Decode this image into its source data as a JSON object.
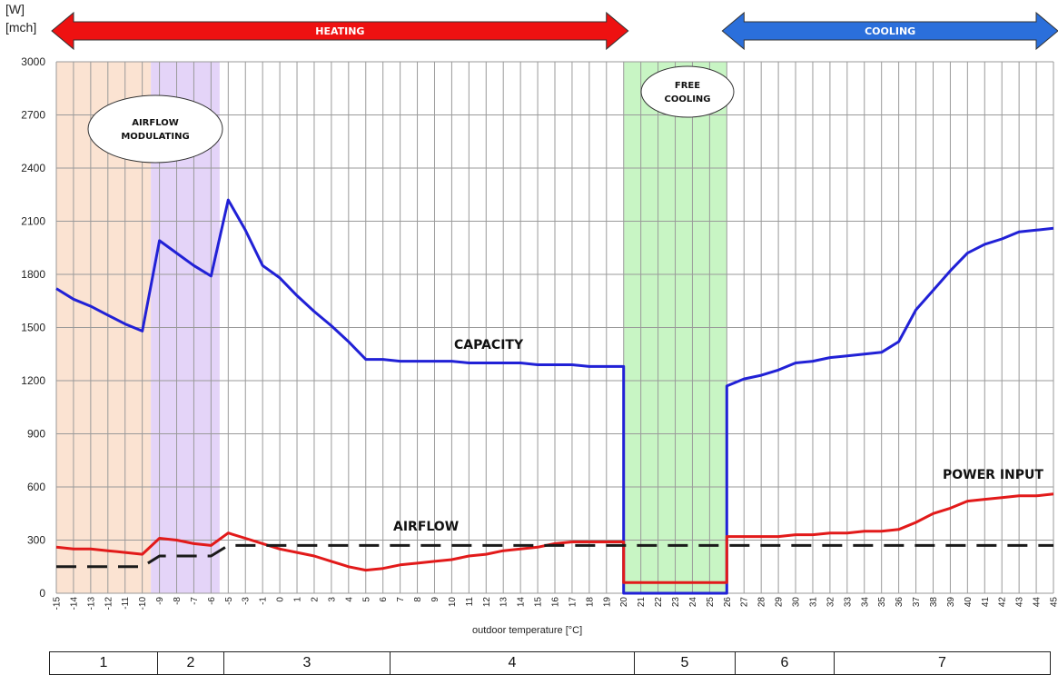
{
  "chart_data": {
    "type": "line",
    "y_unit_top": "[W]",
    "y_unit_bottom": "[mch]",
    "xlabel": "outdoor temperature [°C]",
    "ylim": [
      0,
      3000
    ],
    "yticks": [
      0,
      300,
      600,
      900,
      1200,
      1500,
      1800,
      2100,
      2400,
      2700,
      3000
    ],
    "x": [
      -15,
      -14,
      -13,
      -12,
      -11,
      -10,
      -9,
      -8,
      -7,
      -6,
      -5,
      -3,
      -1,
      0,
      1,
      2,
      3,
      4,
      5,
      6,
      7,
      8,
      9,
      10,
      11,
      12,
      13,
      14,
      15,
      16,
      17,
      18,
      19,
      20,
      21,
      22,
      23,
      24,
      25,
      26,
      27,
      28,
      29,
      30,
      31,
      32,
      33,
      34,
      35,
      36,
      37,
      38,
      39,
      40,
      41,
      42,
      43,
      44,
      45
    ],
    "grid": true,
    "series": [
      {
        "name": "CAPACITY",
        "color": "#2121d6",
        "points": [
          [
            -15,
            1720
          ],
          [
            -14,
            1660
          ],
          [
            -13,
            1620
          ],
          [
            -12,
            1570
          ],
          [
            -11,
            1520
          ],
          [
            -10,
            1480
          ],
          [
            -9,
            1990
          ],
          [
            -8,
            1920
          ],
          [
            -7,
            1850
          ],
          [
            -6,
            1790
          ],
          [
            -5,
            2220
          ],
          [
            -3,
            2050
          ],
          [
            -1,
            1850
          ],
          [
            0,
            1780
          ],
          [
            1,
            1680
          ],
          [
            2,
            1590
          ],
          [
            3,
            1510
          ],
          [
            4,
            1420
          ],
          [
            5,
            1320
          ],
          [
            6,
            1320
          ],
          [
            7,
            1310
          ],
          [
            8,
            1310
          ],
          [
            9,
            1310
          ],
          [
            10,
            1310
          ],
          [
            11,
            1300
          ],
          [
            12,
            1300
          ],
          [
            13,
            1300
          ],
          [
            14,
            1300
          ],
          [
            15,
            1290
          ],
          [
            16,
            1290
          ],
          [
            17,
            1290
          ],
          [
            18,
            1280
          ],
          [
            19,
            1280
          ],
          [
            20,
            1280
          ],
          [
            20,
            0
          ],
          [
            26,
            0
          ],
          [
            26,
            1170
          ],
          [
            27,
            1210
          ],
          [
            28,
            1230
          ],
          [
            29,
            1260
          ],
          [
            30,
            1300
          ],
          [
            31,
            1310
          ],
          [
            32,
            1330
          ],
          [
            33,
            1340
          ],
          [
            34,
            1350
          ],
          [
            35,
            1360
          ],
          [
            36,
            1420
          ],
          [
            37,
            1600
          ],
          [
            38,
            1710
          ],
          [
            39,
            1820
          ],
          [
            40,
            1920
          ],
          [
            41,
            1970
          ],
          [
            42,
            2000
          ],
          [
            43,
            2040
          ],
          [
            44,
            2050
          ],
          [
            45,
            2060
          ]
        ]
      },
      {
        "name": "POWER INPUT",
        "color": "#e21a1a",
        "points": [
          [
            -15,
            260
          ],
          [
            -14,
            250
          ],
          [
            -13,
            250
          ],
          [
            -12,
            240
          ],
          [
            -11,
            230
          ],
          [
            -10,
            220
          ],
          [
            -9,
            310
          ],
          [
            -8,
            300
          ],
          [
            -7,
            280
          ],
          [
            -6,
            270
          ],
          [
            -5,
            340
          ],
          [
            -3,
            310
          ],
          [
            -1,
            280
          ],
          [
            0,
            250
          ],
          [
            1,
            230
          ],
          [
            2,
            210
          ],
          [
            3,
            180
          ],
          [
            4,
            150
          ],
          [
            5,
            130
          ],
          [
            6,
            140
          ],
          [
            7,
            160
          ],
          [
            8,
            170
          ],
          [
            9,
            180
          ],
          [
            10,
            190
          ],
          [
            11,
            210
          ],
          [
            12,
            220
          ],
          [
            13,
            240
          ],
          [
            14,
            250
          ],
          [
            15,
            260
          ],
          [
            16,
            280
          ],
          [
            17,
            290
          ],
          [
            18,
            290
          ],
          [
            19,
            290
          ],
          [
            20,
            290
          ],
          [
            20,
            60
          ],
          [
            26,
            60
          ],
          [
            26,
            320
          ],
          [
            27,
            320
          ],
          [
            28,
            320
          ],
          [
            29,
            320
          ],
          [
            30,
            330
          ],
          [
            31,
            330
          ],
          [
            32,
            340
          ],
          [
            33,
            340
          ],
          [
            34,
            350
          ],
          [
            35,
            350
          ],
          [
            36,
            360
          ],
          [
            37,
            400
          ],
          [
            38,
            450
          ],
          [
            39,
            480
          ],
          [
            40,
            520
          ],
          [
            41,
            530
          ],
          [
            42,
            540
          ],
          [
            43,
            550
          ],
          [
            44,
            550
          ],
          [
            45,
            560
          ]
        ]
      },
      {
        "name": "AIRFLOW",
        "color": "#1a1a1a",
        "dash": true,
        "points": [
          [
            -15,
            150
          ],
          [
            -14,
            150
          ],
          [
            -13,
            150
          ],
          [
            -12,
            150
          ],
          [
            -11,
            150
          ],
          [
            -10,
            150
          ],
          [
            -9,
            210
          ],
          [
            -8,
            210
          ],
          [
            -7,
            210
          ],
          [
            -6,
            210
          ],
          [
            -5,
            270
          ],
          [
            0,
            270
          ],
          [
            5,
            270
          ],
          [
            10,
            270
          ],
          [
            15,
            270
          ],
          [
            20,
            270
          ],
          [
            25,
            270
          ],
          [
            30,
            270
          ],
          [
            35,
            270
          ],
          [
            40,
            270
          ],
          [
            45,
            270
          ]
        ]
      }
    ],
    "zones": [
      {
        "from": -15,
        "to": -9.5,
        "color": "#fbe3d2"
      },
      {
        "from": -9.5,
        "to": -5.5,
        "color": "#e4d4f8"
      },
      {
        "from": 20,
        "to": 26,
        "color": "#c8f5c4"
      }
    ],
    "annotations": {
      "capacity": "CAPACITY",
      "airflow": "AIRFLOW",
      "power_input": "POWER INPUT",
      "airflow_modulating_1": "AIRFLOW",
      "airflow_modulating_2": "MODULATING",
      "free_cooling_1": "FREE",
      "free_cooling_2": "COOLING"
    },
    "arrows": {
      "heating": {
        "label": "HEATING",
        "color": "#ee1111",
        "from": -15,
        "to": 20
      },
      "cooling": {
        "label": "COOLING",
        "color": "#2b6fdb",
        "from": 26,
        "to": 45
      }
    },
    "zone_table": [
      "1",
      "2",
      "3",
      "4",
      "5",
      "6",
      "7"
    ]
  }
}
